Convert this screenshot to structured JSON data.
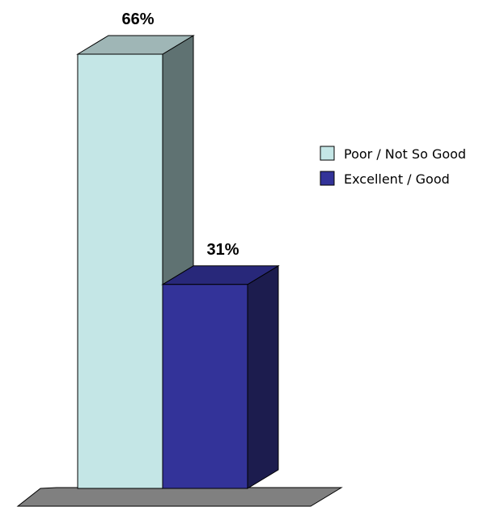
{
  "chart_data": {
    "type": "bar",
    "categories": [
      "Poor / Not So Good",
      "Excellent / Good"
    ],
    "values": [
      66,
      31
    ],
    "value_labels": [
      "66%",
      "31%"
    ],
    "colors": {
      "Poor / Not So Good": {
        "front": "#c4e6e6",
        "side": "#5f7272",
        "top": "#9fb6b6"
      },
      "Excellent / Good": {
        "front": "#333399",
        "side": "#1c1c4e",
        "top": "#28287a"
      }
    },
    "floor_color": "#808080",
    "ylim": [
      0,
      72
    ],
    "grid": false,
    "legend_position": "right",
    "legend": [
      {
        "label": "Poor / Not So Good",
        "color": "#c4e6e6"
      },
      {
        "label": "Excellent / Good",
        "color": "#333399"
      }
    ]
  }
}
